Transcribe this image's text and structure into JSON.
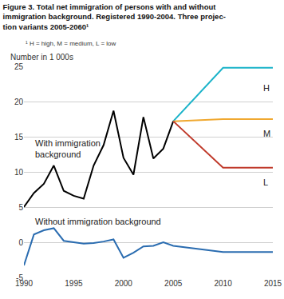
{
  "chart_data": {
    "type": "line",
    "title": [
      "Figure 3. Total net immigration of persons with and without",
      "immigration background. Registered 1990-2004. Three projec-",
      "tion variants 2005-2060¹"
    ],
    "footnote": "¹ H = high, M = medium, L = low",
    "y_label": "Number in 1 000s",
    "xlim": [
      1990,
      2015
    ],
    "xticks": [
      1990,
      1995,
      2000,
      2005,
      2010,
      2015
    ],
    "ylim": [
      -5,
      25
    ],
    "yticks": [
      -5,
      0,
      5,
      10,
      15,
      20,
      25
    ],
    "grid": true,
    "series": [
      {
        "name": "With immigration background",
        "color": "#000000",
        "x": [
          1990,
          1991,
          1992,
          1993,
          1994,
          1995,
          1996,
          1997,
          1998,
          1999,
          2000,
          2001,
          2002,
          2003,
          2004,
          2005
        ],
        "values": [
          5.0,
          7.0,
          8.3,
          10.9,
          7.3,
          6.6,
          6.2,
          10.9,
          13.8,
          18.7,
          12.0,
          9.6,
          17.8,
          11.9,
          13.3,
          17.2
        ]
      },
      {
        "name": "Without immigration background",
        "color": "#2a6cb0",
        "x": [
          1990,
          1991,
          1992,
          1993,
          1994,
          1995,
          1996,
          1997,
          1998,
          1999,
          2000,
          2001,
          2002,
          2003,
          2004,
          2005,
          2010,
          2015
        ],
        "values": [
          -3.3,
          1.1,
          1.7,
          2.0,
          0.2,
          0.0,
          -0.2,
          -0.1,
          0.1,
          0.4,
          -2.2,
          -1.5,
          -0.6,
          -0.5,
          0.0,
          -0.5,
          -1.4,
          -1.4
        ]
      },
      {
        "name": "H",
        "color": "#1ab3c9",
        "x": [
          2005,
          2010,
          2015
        ],
        "values": [
          17.2,
          24.8,
          24.8
        ]
      },
      {
        "name": "M",
        "color": "#f0a830",
        "x": [
          2005,
          2010,
          2015
        ],
        "values": [
          17.2,
          17.5,
          17.5
        ]
      },
      {
        "name": "L",
        "color": "#c03a2b",
        "x": [
          2005,
          2010,
          2015
        ],
        "values": [
          17.2,
          10.6,
          10.6
        ]
      }
    ],
    "annotations": [
      {
        "text": [
          "With immigration",
          "background"
        ],
        "x": 1991,
        "y": 13.3
      },
      {
        "text": [
          "Without immigration background"
        ],
        "x": 1991,
        "y": 3.0
      },
      {
        "text": [
          "H"
        ],
        "x": 2013.9,
        "y": 21.9
      },
      {
        "text": [
          "M"
        ],
        "x": 2013.9,
        "y": 15.5
      },
      {
        "text": [
          "L"
        ],
        "x": 2013.9,
        "y": 8.5
      }
    ]
  }
}
